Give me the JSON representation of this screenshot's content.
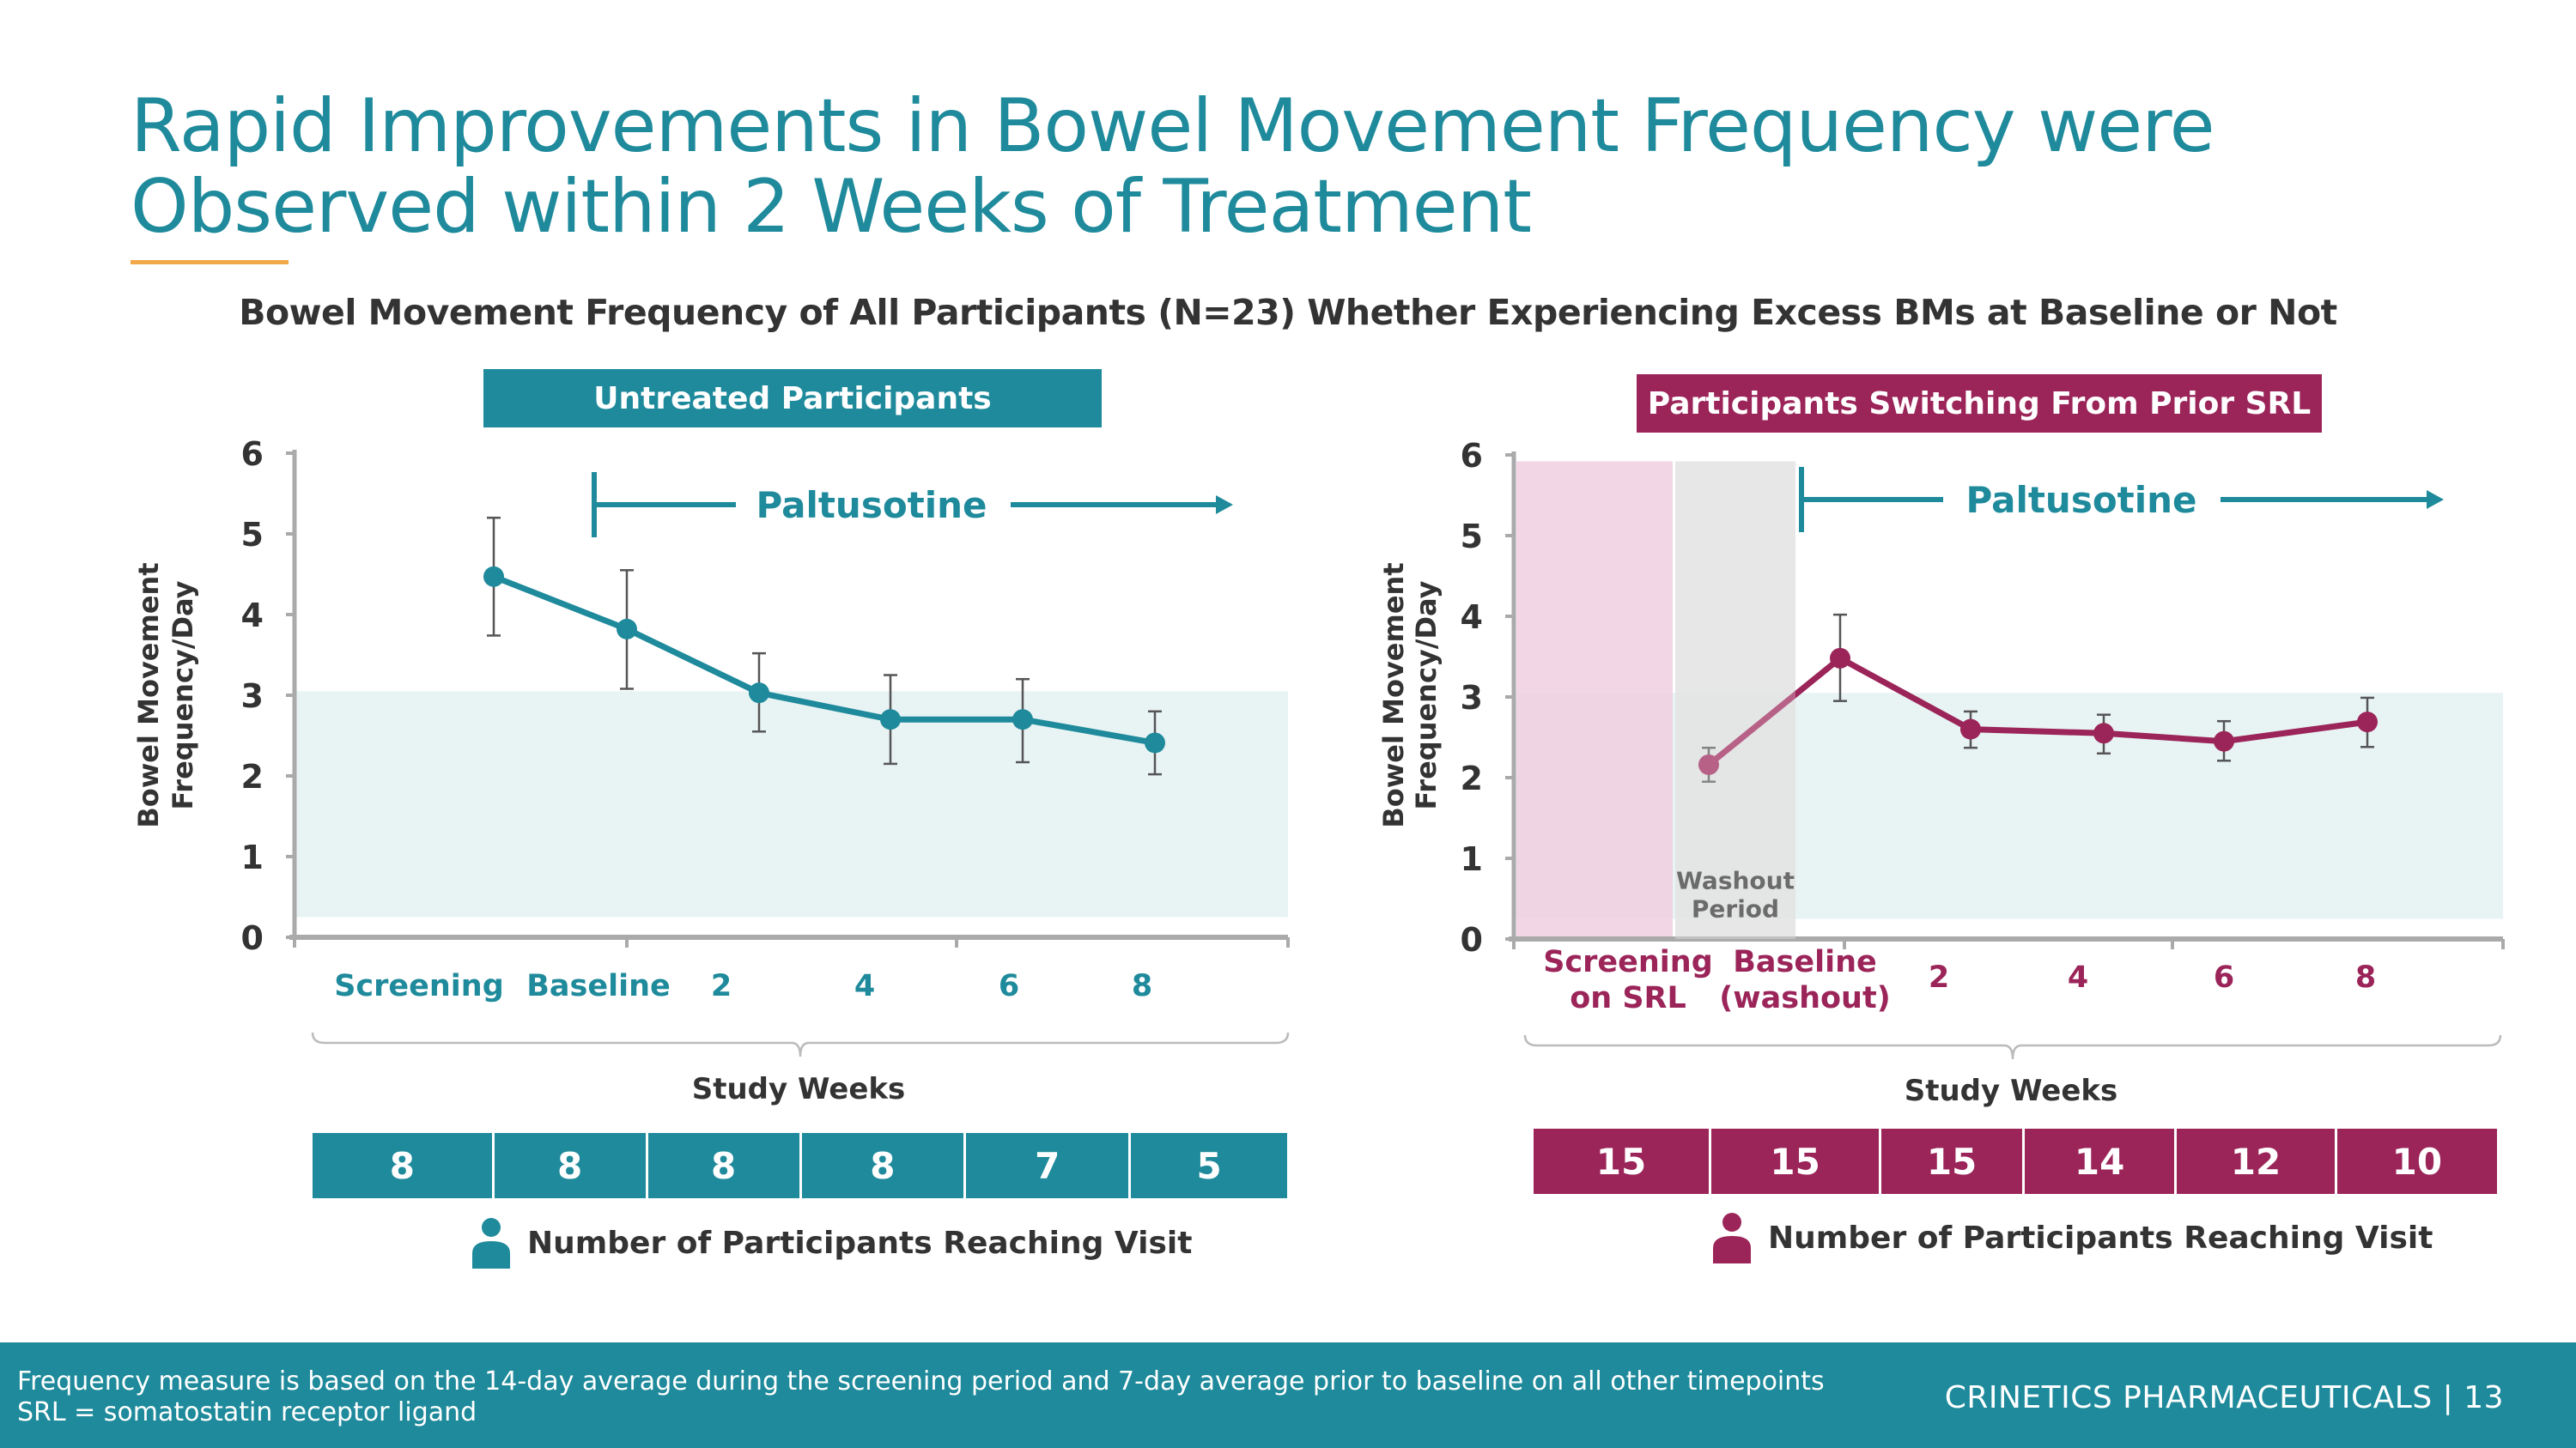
{
  "slide": {
    "title_line1": "Rapid Improvements in Bowel Movement Frequency were",
    "title_line2": "Observed within 2 Weeks of Treatment",
    "subtitle": "Bowel Movement Frequency of All Participants (N=23) Whether Experiencing Excess BMs at Baseline or Not",
    "page_number": "13",
    "brand": "CRINETICS PHARMACEUTICALS | 13",
    "footnote_line1": "Frequency measure is based on the 14-day average during the screening period and 7-day average prior to baseline on all other timepoints",
    "footnote_line2": "SRL = somatostatin receptor ligand",
    "colors": {
      "teal": "#1e8a9b",
      "magenta": "#9b2459",
      "accent_rule": "#f0a848",
      "band": "#e8f3f4",
      "screening_band": "#f0cfe0",
      "washout_band": "#d6d6d6"
    }
  },
  "chart_data": [
    {
      "type": "line",
      "panel_title": "Untreated Participants",
      "ylabel_line1": "Bowel Movement",
      "ylabel_line2": "Frequency/Day",
      "xlabel": "Study Weeks",
      "ylim": [
        0,
        6
      ],
      "yticks": [
        "0",
        "1",
        "2",
        "3",
        "4",
        "5",
        "6"
      ],
      "categories": [
        "Screening",
        "Baseline",
        "2",
        "4",
        "6",
        "8"
      ],
      "series": [
        {
          "name": "Untreated",
          "values": [
            4.47,
            3.82,
            3.03,
            2.7,
            2.7,
            2.41
          ],
          "err_high": [
            5.2,
            4.55,
            3.52,
            3.25,
            3.2,
            2.8
          ],
          "err_low": [
            3.74,
            3.08,
            2.55,
            2.15,
            2.17,
            2.02
          ]
        }
      ],
      "reference_band": [
        0.25,
        3.05
      ],
      "annotation": "Paltusotine",
      "participants": [
        8,
        8,
        8,
        8,
        7,
        5
      ],
      "participants_label": "Number of Participants Reaching Visit",
      "grid": false
    },
    {
      "type": "line",
      "panel_title": "Participants Switching From Prior SRL",
      "ylabel_line1": "Bowel Movement",
      "ylabel_line2": "Frequency/Day",
      "xlabel": "Study Weeks",
      "ylim": [
        0,
        6
      ],
      "yticks": [
        "0",
        "1",
        "2",
        "3",
        "4",
        "5",
        "6"
      ],
      "categories": [
        "Screening on SRL",
        "Baseline (washout)",
        "2",
        "4",
        "6",
        "8"
      ],
      "category_lines": [
        [
          "Screening",
          "on SRL"
        ],
        [
          "Baseline",
          "(washout)"
        ],
        [
          "2"
        ],
        [
          "4"
        ],
        [
          "6"
        ],
        [
          "8"
        ]
      ],
      "series": [
        {
          "name": "Switching from SRL",
          "values": [
            2.16,
            3.48,
            2.6,
            2.55,
            2.45,
            2.69
          ],
          "err_high": [
            2.37,
            4.02,
            2.82,
            2.78,
            2.7,
            2.99
          ],
          "err_low": [
            1.95,
            2.95,
            2.37,
            2.3,
            2.21,
            2.38
          ]
        }
      ],
      "reference_band": [
        0.25,
        3.05
      ],
      "washout_label_line1": "Washout",
      "washout_label_line2": "Period",
      "annotation": "Paltusotine",
      "participants": [
        15,
        15,
        15,
        14,
        12,
        10
      ],
      "participants_label": "Number of Participants Reaching Visit",
      "grid": false
    }
  ]
}
